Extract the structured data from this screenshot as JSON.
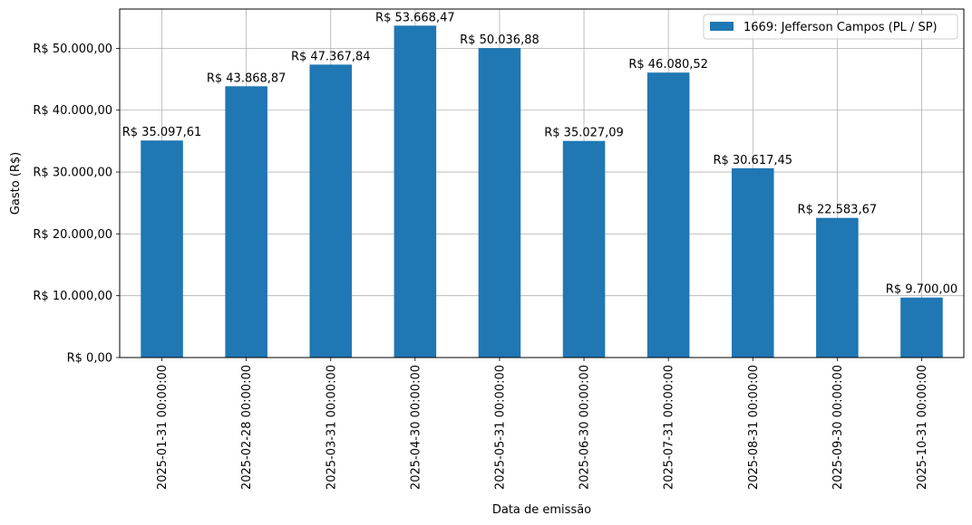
{
  "chart_data": {
    "type": "bar",
    "xlabel": "Data de emissão",
    "ylabel": "Gasto (R$)",
    "categories": [
      "2025-01-31 00:00:00",
      "2025-02-28 00:00:00",
      "2025-03-31 00:00:00",
      "2025-04-30 00:00:00",
      "2025-05-31 00:00:00",
      "2025-06-30 00:00:00",
      "2025-07-31 00:00:00",
      "2025-08-31 00:00:00",
      "2025-09-30 00:00:00",
      "2025-10-31 00:00:00"
    ],
    "series": [
      {
        "name": "1669: Jefferson Campos (PL / SP)",
        "color": "#1f77b4",
        "values": [
          35097.61,
          43868.87,
          47367.84,
          53668.47,
          50036.88,
          35027.09,
          46080.52,
          30617.45,
          22583.67,
          9700.0
        ],
        "labels": [
          "R$ 35.097,61",
          "R$ 43.868,87",
          "R$ 47.367,84",
          "R$ 53.668,47",
          "R$ 50.036,88",
          "R$ 35.027,09",
          "R$ 46.080,52",
          "R$ 30.617,45",
          "R$ 22.583,67",
          "R$ 9.700,00"
        ]
      }
    ],
    "ylim": [
      0,
      56351.89
    ],
    "yticks": [
      0,
      10000,
      20000,
      30000,
      40000,
      50000
    ],
    "ytick_labels": [
      "R$ 0,00",
      "R$ 10.000,00",
      "R$ 20.000,00",
      "R$ 30.000,00",
      "R$ 40.000,00",
      "R$ 50.000,00"
    ],
    "grid": true,
    "legend_position": "top-right"
  }
}
